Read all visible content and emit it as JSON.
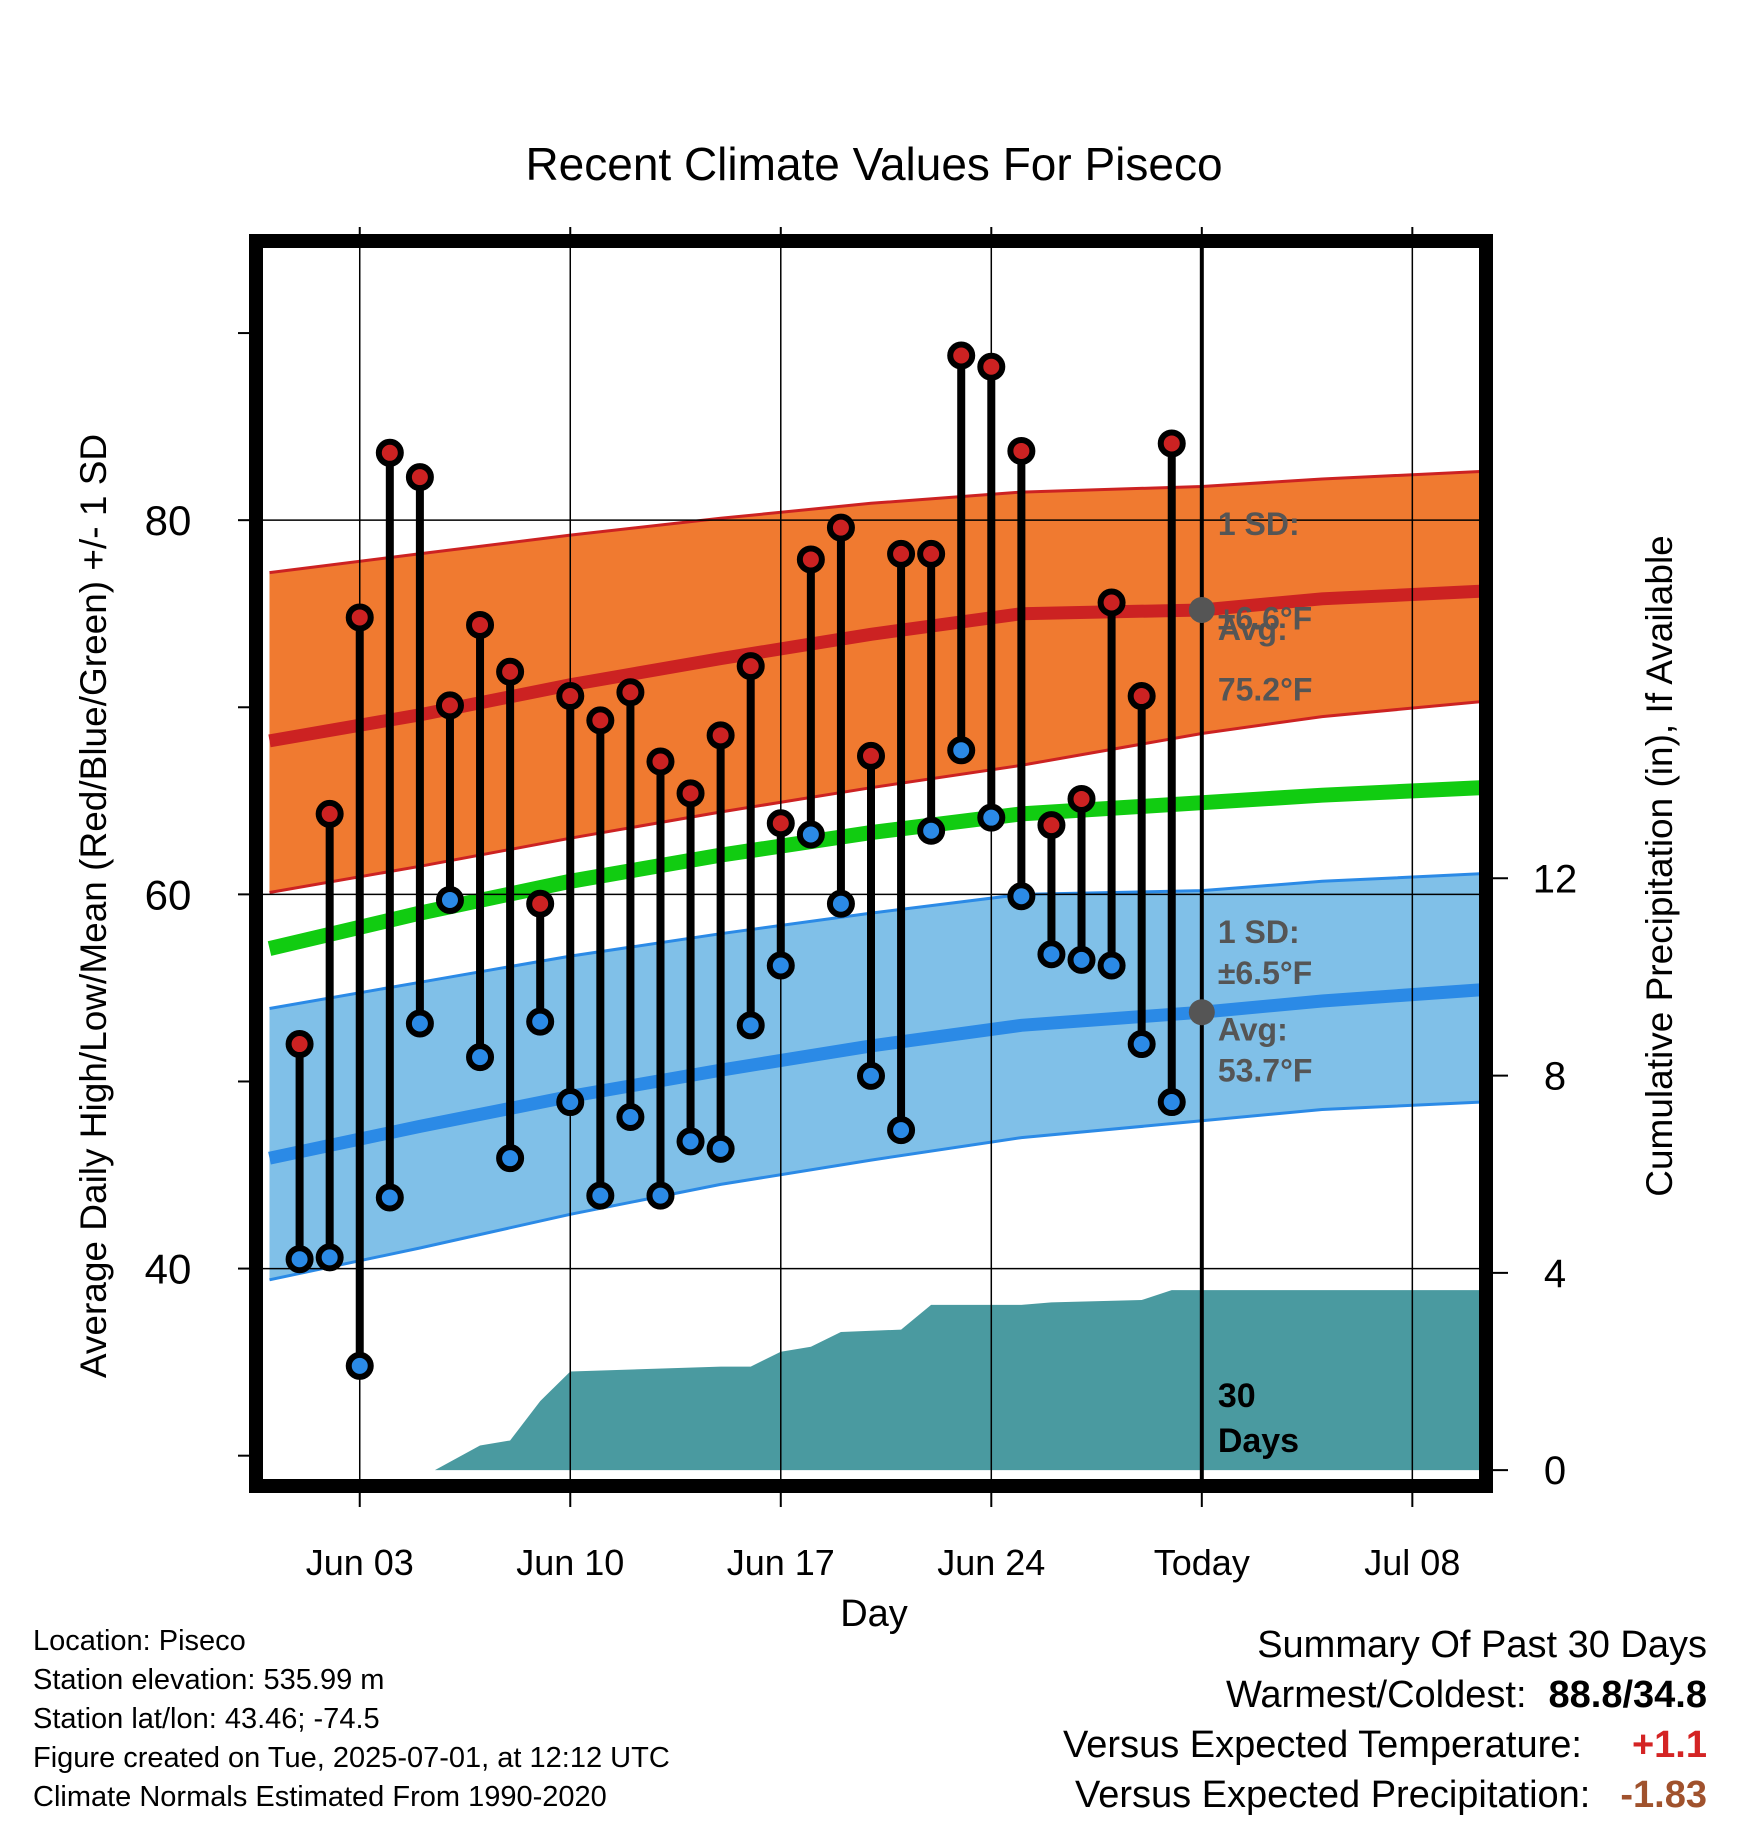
{
  "chart_data": {
    "type": "line",
    "title": "Recent Climate Values For Piseco",
    "xlabel": "Day",
    "ylabel_left": "Average Daily High/Low/Mean (Red/Blue/Green) +/- 1 SD",
    "ylabel_right": "Cumulative Precipitation (in), If Available",
    "x_tick_labels": [
      {
        "day": 3,
        "label": "Jun 03"
      },
      {
        "day": 10,
        "label": "Jun 10"
      },
      {
        "day": 17,
        "label": "Jun 17"
      },
      {
        "day": 24,
        "label": "Jun 24"
      },
      {
        "day": 31,
        "label": "Today"
      },
      {
        "day": 38,
        "label": "Jul 08"
      }
    ],
    "x_range_day_of_june": [
      -0.25,
      40.25
    ],
    "y_left_ticks": [
      40,
      60,
      80
    ],
    "y_left_range": [
      28.7,
      94.6
    ],
    "y_right_ticks": [
      0,
      4,
      8,
      12
    ],
    "y_right_range": [
      -0.2,
      24.8
    ],
    "today_day": 31,
    "normals_days": [
      0,
      5,
      10,
      15,
      20,
      25,
      31,
      35,
      40.25
    ],
    "normal_high": [
      68.2,
      69.6,
      71.2,
      72.6,
      73.9,
      75.0,
      75.2,
      75.8,
      76.2
    ],
    "normal_high_plus_sd": [
      77.2,
      78.2,
      79.2,
      80.1,
      80.9,
      81.5,
      81.8,
      82.2,
      82.6
    ],
    "normal_high_minus_sd": [
      60.1,
      61.5,
      63.0,
      64.4,
      65.7,
      66.9,
      68.6,
      69.5,
      70.3
    ],
    "normal_mean": [
      57.1,
      59.0,
      60.7,
      62.1,
      63.3,
      64.3,
      64.9,
      65.3,
      65.7
    ],
    "normal_low": [
      45.9,
      47.6,
      49.2,
      50.6,
      51.9,
      53.0,
      53.7,
      54.3,
      54.9
    ],
    "normal_low_plus_sd": [
      53.9,
      55.3,
      56.7,
      57.9,
      59.0,
      60.0,
      60.2,
      60.7,
      61.1
    ],
    "normal_low_minus_sd": [
      39.4,
      41.1,
      42.9,
      44.5,
      45.8,
      47.0,
      47.9,
      48.5,
      48.9
    ],
    "series": [
      {
        "name": "High",
        "color": "#cc2222",
        "values": [
          {
            "day": 1,
            "value": 52.0
          },
          {
            "day": 2,
            "value": 64.3
          },
          {
            "day": 3,
            "value": 74.8
          },
          {
            "day": 4,
            "value": 83.6
          },
          {
            "day": 5,
            "value": 82.3
          },
          {
            "day": 6,
            "value": 70.1
          },
          {
            "day": 7,
            "value": 74.4
          },
          {
            "day": 8,
            "value": 71.9
          },
          {
            "day": 9,
            "value": 59.5
          },
          {
            "day": 10,
            "value": 70.6
          },
          {
            "day": 11,
            "value": 69.3
          },
          {
            "day": 12,
            "value": 70.8
          },
          {
            "day": 13,
            "value": 67.1
          },
          {
            "day": 14,
            "value": 65.4
          },
          {
            "day": 15,
            "value": 68.5
          },
          {
            "day": 16,
            "value": 72.2
          },
          {
            "day": 17,
            "value": 63.8
          },
          {
            "day": 18,
            "value": 77.9
          },
          {
            "day": 19,
            "value": 79.6
          },
          {
            "day": 20,
            "value": 67.4
          },
          {
            "day": 21,
            "value": 78.2
          },
          {
            "day": 22,
            "value": 78.2
          },
          {
            "day": 23,
            "value": 88.8
          },
          {
            "day": 24,
            "value": 88.2
          },
          {
            "day": 25,
            "value": 83.7
          },
          {
            "day": 26,
            "value": 63.7
          },
          {
            "day": 27,
            "value": 65.1
          },
          {
            "day": 28,
            "value": 75.6
          },
          {
            "day": 29,
            "value": 70.6
          },
          {
            "day": 30,
            "value": 84.1
          }
        ]
      },
      {
        "name": "Low",
        "color": "#2b8ae6",
        "values": [
          {
            "day": 1,
            "value": 40.5
          },
          {
            "day": 2,
            "value": 40.6
          },
          {
            "day": 3,
            "value": 34.8
          },
          {
            "day": 4,
            "value": 43.8
          },
          {
            "day": 5,
            "value": 53.1
          },
          {
            "day": 6,
            "value": 59.7
          },
          {
            "day": 7,
            "value": 51.3
          },
          {
            "day": 8,
            "value": 45.9
          },
          {
            "day": 9,
            "value": 53.2
          },
          {
            "day": 10,
            "value": 48.9
          },
          {
            "day": 11,
            "value": 43.9
          },
          {
            "day": 12,
            "value": 48.1
          },
          {
            "day": 13,
            "value": 43.9
          },
          {
            "day": 14,
            "value": 46.8
          },
          {
            "day": 15,
            "value": 46.4
          },
          {
            "day": 16,
            "value": 53.0
          },
          {
            "day": 17,
            "value": 56.2
          },
          {
            "day": 18,
            "value": 63.2
          },
          {
            "day": 19,
            "value": 59.5
          },
          {
            "day": 20,
            "value": 50.3
          },
          {
            "day": 21,
            "value": 47.4
          },
          {
            "day": 22,
            "value": 63.4
          },
          {
            "day": 23,
            "value": 67.7
          },
          {
            "day": 24,
            "value": 64.1
          },
          {
            "day": 25,
            "value": 59.9
          },
          {
            "day": 26,
            "value": 56.8
          },
          {
            "day": 27,
            "value": 56.5
          },
          {
            "day": 28,
            "value": 56.2
          },
          {
            "day": 29,
            "value": 52.0
          },
          {
            "day": 30,
            "value": 48.9
          }
        ]
      }
    ],
    "precipitation": {
      "name": "Cumulative Precipitation",
      "color": "#4a9aa0",
      "points": [
        {
          "day": 0,
          "value": 0
        },
        {
          "day": 5.5,
          "value": 0
        },
        {
          "day": 7,
          "value": 0.5
        },
        {
          "day": 8,
          "value": 0.6
        },
        {
          "day": 9,
          "value": 1.4
        },
        {
          "day": 10,
          "value": 2.0
        },
        {
          "day": 15,
          "value": 2.1
        },
        {
          "day": 16,
          "value": 2.1
        },
        {
          "day": 17,
          "value": 2.4
        },
        {
          "day": 18,
          "value": 2.5
        },
        {
          "day": 19,
          "value": 2.8
        },
        {
          "day": 21,
          "value": 2.85
        },
        {
          "day": 22,
          "value": 3.35
        },
        {
          "day": 25,
          "value": 3.35
        },
        {
          "day": 26,
          "value": 3.4
        },
        {
          "day": 29,
          "value": 3.45
        },
        {
          "day": 30,
          "value": 3.65
        },
        {
          "day": 40.25,
          "value": 3.65
        }
      ]
    },
    "annotations": {
      "high_sd": "1 SD:",
      "high_sd_value": "±6.6°F",
      "high_avg": "Avg:",
      "high_avg_value": "75.2°F",
      "low_sd": "1 SD:",
      "low_sd_value": "±6.5°F",
      "low_avg": "Avg:",
      "low_avg_value": "53.7°F",
      "days_count": "30",
      "days_label": "Days"
    },
    "colors": {
      "high_band": "#f07a30",
      "high_line": "#cc2222",
      "mean_line": "#11cc11",
      "low_band": "#80c0e8",
      "low_line": "#2b8ae6",
      "precip": "#4a9aa0",
      "annotation_text": "#555555",
      "avg_marker": "#555555"
    },
    "grid": true
  },
  "meta": {
    "location": "Location: Piseco",
    "elevation": "Station elevation: 535.99 m",
    "latlon": "Station lat/lon: 43.46; -74.5",
    "created": "Figure created on Tue, 2025-07-01, at 12:12 UTC",
    "normals": "Climate Normals Estimated From 1990-2020"
  },
  "summary": {
    "title": "Summary Of Past 30 Days",
    "warm_label": "Warmest/Coldest:",
    "warm_value": "88.8/34.8",
    "temp_label": "Versus Expected Temperature:",
    "temp_value": "+1.1",
    "precip_label": "Versus Expected Precipitation:",
    "precip_value": "-1.83"
  }
}
